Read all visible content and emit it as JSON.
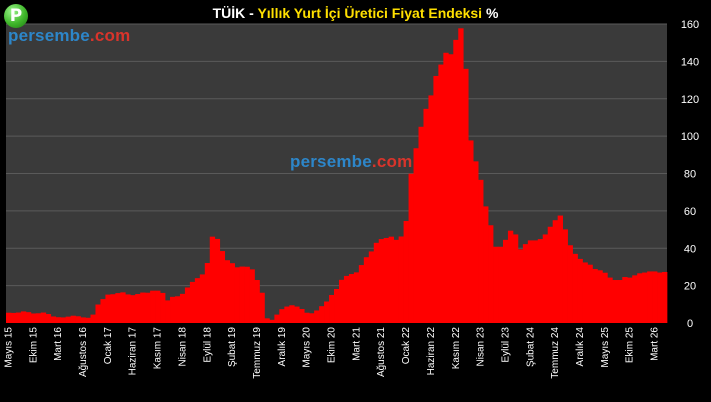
{
  "header": {
    "title_prefix": "TÜİK - ",
    "title_main": "Yıllık Yurt İçi Üretici Fiyat Endeksi",
    "title_suffix": " %",
    "logo_letter": "P"
  },
  "watermark": {
    "part1": "persembe",
    "part2": ".com"
  },
  "colors": {
    "background": "#000000",
    "plot_background": "#3a3a3a",
    "bar": "#ff0000",
    "grid": "#5a5a5a",
    "axis_text": "#ffffff",
    "title_highlight": "#ffe000"
  },
  "chart_data": {
    "type": "bar",
    "title": "TÜİK - Yıllık Yurt İçi Üretici Fiyat Endeksi %",
    "ylabel": "",
    "xlabel": "",
    "ylim": [
      0,
      160
    ],
    "yticks": [
      0,
      20,
      40,
      60,
      80,
      100,
      120,
      140,
      160
    ],
    "y_axis_side": "right",
    "grid": true,
    "legend": "none",
    "x_tick_labels": [
      {
        "index": 0,
        "label": "Mayıs 15"
      },
      {
        "index": 5,
        "label": "Ekim 15"
      },
      {
        "index": 10,
        "label": "Mart 16"
      },
      {
        "index": 15,
        "label": "Ağustos 16"
      },
      {
        "index": 20,
        "label": "Ocak 17"
      },
      {
        "index": 25,
        "label": "Haziran 17"
      },
      {
        "index": 30,
        "label": "Kasım 17"
      },
      {
        "index": 35,
        "label": "Nisan 18"
      },
      {
        "index": 40,
        "label": "Eylül 18"
      },
      {
        "index": 45,
        "label": "Şubat 19"
      },
      {
        "index": 50,
        "label": "Temmuz 19"
      },
      {
        "index": 55,
        "label": "Aralık 19"
      },
      {
        "index": 60,
        "label": "Mayıs 20"
      },
      {
        "index": 65,
        "label": "Ekim 20"
      },
      {
        "index": 70,
        "label": "Mart 21"
      },
      {
        "index": 75,
        "label": "Ağustos 21"
      },
      {
        "index": 80,
        "label": "Ocak 22"
      },
      {
        "index": 85,
        "label": "Haziran 22"
      },
      {
        "index": 90,
        "label": "Kasım 22"
      },
      {
        "index": 95,
        "label": "Nisan 23"
      },
      {
        "index": 100,
        "label": "Eylül 23"
      },
      {
        "index": 105,
        "label": "Şubat 24"
      },
      {
        "index": 110,
        "label": "Temmuz 24"
      },
      {
        "index": 115,
        "label": "Aralık 24"
      },
      {
        "index": 120,
        "label": "Mayıs 25"
      },
      {
        "index": 125,
        "label": "Ekim 25"
      },
      {
        "index": 130,
        "label": "Mart 26"
      }
    ],
    "values": [
      5.5,
      5.4,
      5.6,
      6.2,
      5.8,
      5.1,
      5.2,
      5.6,
      4.8,
      3.5,
      3.1,
      3.0,
      3.4,
      3.9,
      3.6,
      3.0,
      2.8,
      4.5,
      9.9,
      12.8,
      15.2,
      15.4,
      16.0,
      16.4,
      15.3,
      14.9,
      15.5,
      16.3,
      16.2,
      17.3,
      17.3,
      16.1,
      12.1,
      14.0,
      14.3,
      15.6,
      19.0,
      22.0,
      24.0,
      26.0,
      32.1,
      46.2,
      45.0,
      38.5,
      33.6,
      32.0,
      29.8,
      30.2,
      30.1,
      28.7,
      23.0,
      16.2,
      2.5,
      1.7,
      4.5,
      7.4,
      8.8,
      9.5,
      8.8,
      7.5,
      5.5,
      5.2,
      6.7,
      9.0,
      11.5,
      15.0,
      18.2,
      23.1,
      25.2,
      26.2,
      27.1,
      31.0,
      35.2,
      38.3,
      42.9,
      44.9,
      45.5,
      46.2,
      44.5,
      46.3,
      54.6,
      79.9,
      93.5,
      105.0,
      114.6,
      121.8,
      132.2,
      138.3,
      144.6,
      143.8,
      151.5,
      157.7,
      136.0,
      97.7,
      86.5,
      76.6,
      62.4,
      52.3,
      40.8,
      40.8,
      44.5,
      49.4,
      47.4,
      39.4,
      42.2,
      44.2,
      44.2,
      44.9,
      47.4,
      51.5,
      55.0,
      57.5,
      50.1,
      41.6,
      37.0,
      34.3,
      32.4,
      31.2,
      28.9,
      28.2,
      26.9,
      24.3,
      23.0,
      23.0,
      24.6,
      24.3,
      25.5,
      26.6,
      27.0,
      27.6,
      27.6,
      27.0,
      27.3
    ]
  }
}
